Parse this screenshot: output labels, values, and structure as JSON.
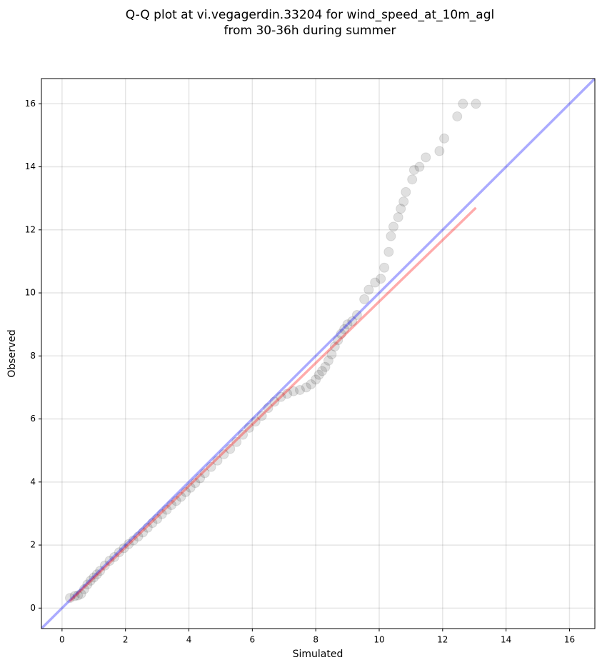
{
  "chart_data": {
    "type": "scatter",
    "title": [
      "Q-Q plot at vi.vegagerdin.33204 for wind_speed_at_10m_agl",
      "from 30-36h during summer"
    ],
    "x_label": "Simulated",
    "y_label": "Observed",
    "xlim": [
      -0.65,
      16.8
    ],
    "ylim": [
      -0.65,
      16.8
    ],
    "xticks": [
      0,
      2,
      4,
      6,
      8,
      10,
      12,
      14,
      16
    ],
    "yticks": [
      0,
      2,
      4,
      6,
      8,
      10,
      12,
      14,
      16
    ],
    "grid": true,
    "series": [
      {
        "color": "#000000",
        "x": [
          0.25,
          0.4,
          0.5,
          0.6,
          0.7,
          0.8,
          0.9,
          1.0,
          1.1,
          1.2,
          1.35,
          1.5,
          1.65,
          1.8,
          1.95,
          2.1,
          2.25,
          2.4,
          2.55,
          2.7,
          2.85,
          3.0,
          3.15,
          3.3,
          3.45,
          3.6,
          3.75,
          3.9,
          4.05,
          4.2,
          4.35,
          4.5,
          4.7,
          4.9,
          5.1,
          5.3,
          5.5,
          5.7,
          5.9,
          6.1,
          6.3,
          6.5,
          6.7,
          6.9,
          7.1,
          7.3,
          7.5,
          7.7,
          7.85,
          8.0,
          8.1,
          8.2,
          8.3,
          8.4,
          8.5,
          8.6,
          8.7,
          8.8,
          8.9,
          9.0,
          9.15,
          9.3,
          9.53,
          9.67,
          9.87,
          10.05,
          10.16,
          10.3,
          10.37,
          10.45,
          10.6,
          10.68,
          10.77,
          10.84,
          11.04,
          11.1,
          11.27,
          11.47,
          11.9,
          12.05,
          12.46,
          12.64,
          13.05
        ],
        "values": [
          0.32,
          0.38,
          0.4,
          0.45,
          0.6,
          0.75,
          0.87,
          0.97,
          1.07,
          1.18,
          1.35,
          1.5,
          1.62,
          1.77,
          1.9,
          2.03,
          2.15,
          2.27,
          2.4,
          2.55,
          2.7,
          2.83,
          2.98,
          3.12,
          3.27,
          3.4,
          3.53,
          3.68,
          3.82,
          3.97,
          4.12,
          4.28,
          4.48,
          4.68,
          4.88,
          5.05,
          5.27,
          5.5,
          5.72,
          5.92,
          6.1,
          6.35,
          6.55,
          6.7,
          6.8,
          6.88,
          6.92,
          7.0,
          7.1,
          7.25,
          7.4,
          7.52,
          7.65,
          7.85,
          8.05,
          8.3,
          8.5,
          8.7,
          8.85,
          9.0,
          9.1,
          9.3,
          9.8,
          10.1,
          10.33,
          10.45,
          10.8,
          11.3,
          11.8,
          12.1,
          12.4,
          12.67,
          12.9,
          13.2,
          13.6,
          13.9,
          14.0,
          14.3,
          14.5,
          14.9,
          15.6,
          16.0,
          16.0
        ]
      }
    ],
    "lines": [
      {
        "color": "#0000ff",
        "x": [
          -0.65,
          16.8
        ],
        "values": [
          -0.65,
          16.8
        ]
      },
      {
        "color": "#ff0000",
        "x": [
          0.25,
          13.05
        ],
        "values": [
          0.22,
          12.7
        ]
      }
    ]
  }
}
